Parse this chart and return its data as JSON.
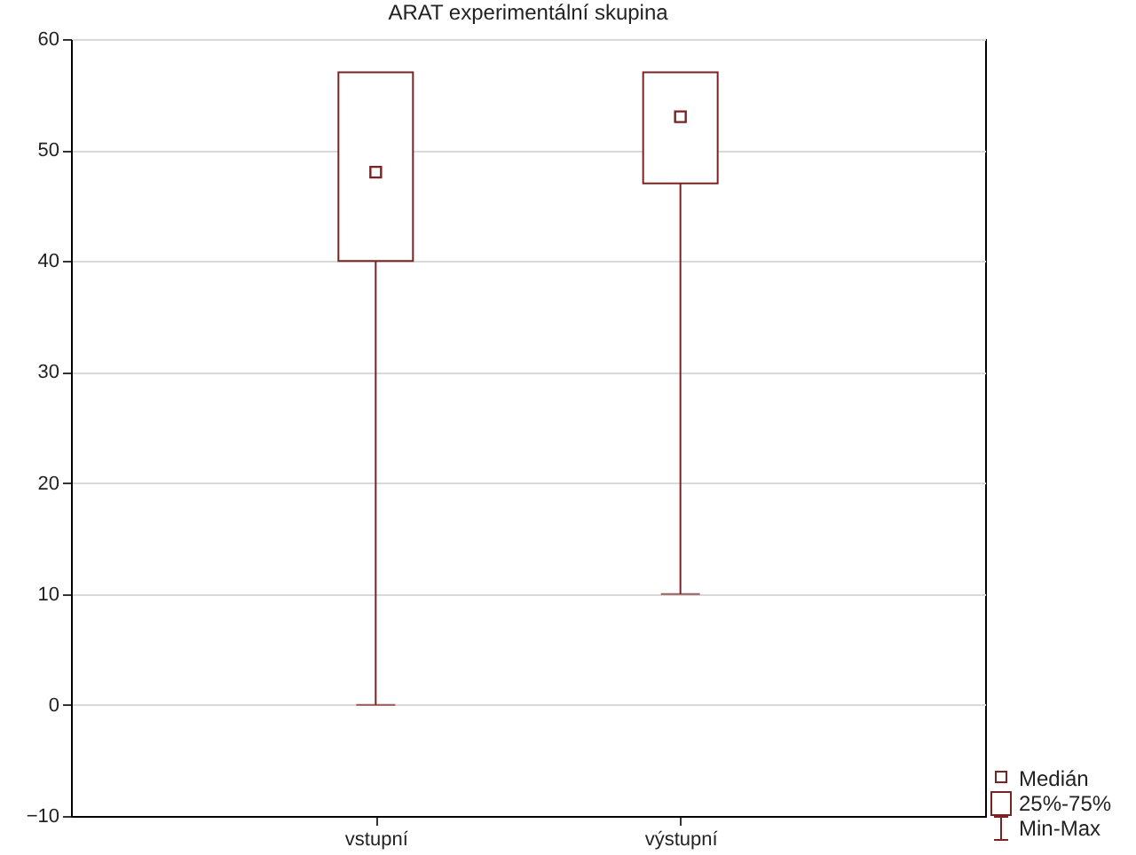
{
  "chart_data": {
    "type": "box",
    "title": "ARAT experimentální skupina",
    "categories": [
      "vstupní",
      "výstupní"
    ],
    "boxes": [
      {
        "low": 0,
        "q1": 40,
        "median": 48,
        "q3": 57,
        "high": 57
      },
      {
        "low": 10,
        "q1": 47,
        "median": 53,
        "q3": 57,
        "high": 57
      }
    ],
    "color": "#7a2323",
    "ylim": [
      -10,
      60
    ],
    "yticks": [
      -10,
      0,
      10,
      20,
      30,
      40,
      50,
      60
    ],
    "grid": "y",
    "marker": "square",
    "annotations": [
      "Medián",
      "25%-75%",
      "Min-Max"
    ]
  }
}
